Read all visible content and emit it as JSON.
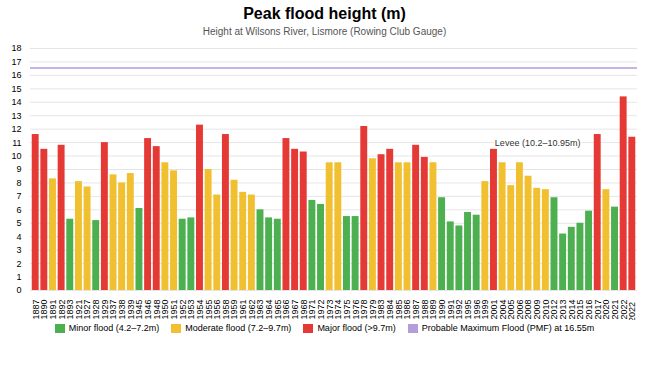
{
  "chart_data": {
    "type": "bar",
    "title": "Peak flood height (m)",
    "subtitle": "Height at Wilsons River, Lismore (Rowing Club Gauge)",
    "categories": [
      "1887",
      "1890",
      "1891",
      "1892",
      "1893",
      "1921",
      "1927",
      "1928",
      "1929",
      "1937",
      "1938",
      "1939",
      "1945",
      "1946",
      "1948",
      "1950",
      "1951",
      "1952",
      "1953",
      "1954",
      "1955",
      "1956",
      "1958",
      "1959",
      "1961",
      "1962",
      "1963",
      "1964",
      "1965",
      "1966",
      "1967",
      "1968",
      "1971",
      "1972",
      "1973",
      "1974",
      "1975",
      "1976",
      "1978",
      "1979",
      "1983",
      "1984",
      "1985",
      "1986",
      "1987",
      "1988",
      "1989",
      "1990",
      "1991",
      "1992",
      "1995",
      "1996",
      "1999",
      "2001",
      "2004",
      "2005",
      "2006",
      "2008",
      "2009",
      "2010",
      "2012",
      "2013",
      "2014",
      "2015",
      "2016",
      "2017",
      "2020",
      "2021",
      "2022",
      "2022 "
    ],
    "series": [
      {
        "name": "Minor flood (4.2–7.2m)",
        "color": "#4caf50",
        "values": [
          null,
          null,
          null,
          null,
          5.3,
          null,
          null,
          5.2,
          null,
          null,
          null,
          null,
          6.1,
          null,
          null,
          null,
          null,
          5.3,
          5.4,
          null,
          null,
          null,
          null,
          null,
          null,
          null,
          6.0,
          5.4,
          5.3,
          null,
          null,
          null,
          6.7,
          6.4,
          null,
          null,
          5.5,
          5.5,
          null,
          null,
          null,
          null,
          null,
          null,
          null,
          null,
          null,
          6.9,
          5.1,
          4.8,
          5.8,
          5.6,
          null,
          null,
          null,
          null,
          null,
          null,
          null,
          null,
          6.9,
          4.2,
          4.7,
          5.0,
          5.9,
          null,
          null,
          6.2,
          null,
          null
        ]
      },
      {
        "name": "Moderate flood (7.2–9.7m)",
        "color": "#f0c030",
        "values": [
          null,
          null,
          8.3,
          null,
          null,
          8.1,
          7.7,
          null,
          null,
          8.6,
          8.0,
          8.7,
          null,
          null,
          null,
          9.5,
          8.9,
          null,
          null,
          null,
          9.0,
          7.1,
          null,
          8.2,
          7.3,
          7.1,
          null,
          null,
          null,
          null,
          null,
          null,
          null,
          null,
          9.5,
          9.5,
          null,
          null,
          null,
          9.8,
          null,
          null,
          9.5,
          9.5,
          null,
          null,
          9.5,
          null,
          null,
          null,
          null,
          null,
          8.1,
          null,
          9.5,
          7.8,
          9.5,
          8.5,
          7.6,
          7.5,
          null,
          null,
          null,
          null,
          null,
          null,
          7.5,
          null,
          null,
          null
        ]
      },
      {
        "name": "Major flood (>9.7m)",
        "color": "#e53935",
        "values": [
          11.6,
          10.5,
          null,
          10.8,
          null,
          null,
          null,
          null,
          11.0,
          null,
          null,
          null,
          null,
          11.3,
          10.7,
          null,
          null,
          null,
          null,
          12.3,
          null,
          null,
          11.6,
          null,
          null,
          null,
          null,
          null,
          null,
          11.3,
          10.5,
          10.3,
          null,
          null,
          null,
          null,
          null,
          null,
          12.2,
          null,
          10.1,
          10.5,
          null,
          null,
          10.8,
          9.9,
          null,
          null,
          null,
          null,
          null,
          null,
          null,
          10.5,
          null,
          null,
          null,
          null,
          null,
          null,
          null,
          null,
          null,
          null,
          null,
          11.6,
          null,
          null,
          14.4,
          11.4
        ]
      },
      {
        "name": "Probable Maximum Flood (PMF) at 16.55m",
        "color": "#b39ddb",
        "type": "hline",
        "value": 16.55
      }
    ],
    "annotations": [
      {
        "text": "Levee (10.2–10.95m)",
        "y": 10.58
      }
    ],
    "ylim": [
      0,
      18
    ],
    "yticks": [
      0,
      1,
      2,
      3,
      4,
      5,
      6,
      7,
      8,
      9,
      10,
      11,
      12,
      13,
      14,
      15,
      16,
      17,
      18
    ],
    "grid": true
  }
}
